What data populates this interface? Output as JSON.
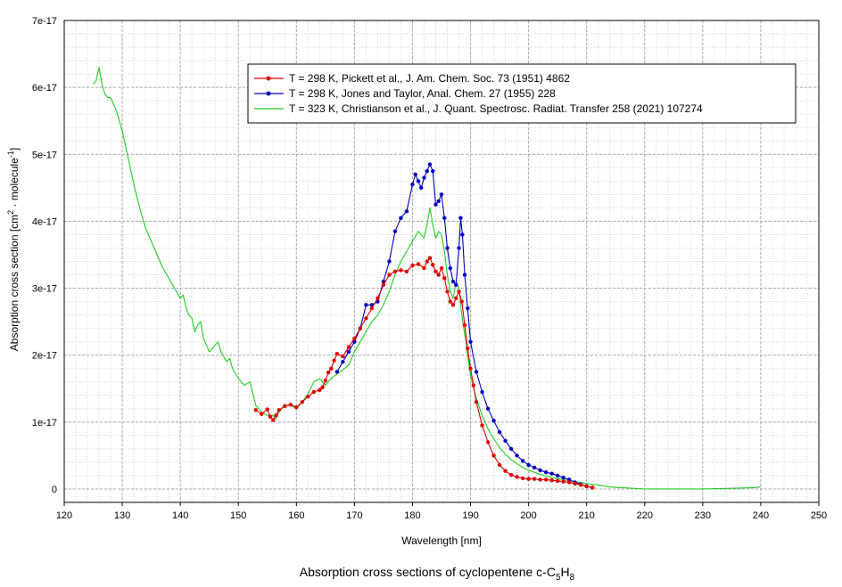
{
  "chart_data": {
    "type": "line",
    "title": "Absorption cross sections of cyclopentene c-C5H8",
    "title_parts": {
      "main": "Absorption cross sections of cyclopentene c-C",
      "sub1": "5",
      "mid": "H",
      "sub2": "8"
    },
    "xlabel": "Wavelength [nm]",
    "ylabel_parts": {
      "a": "Absorption cross section [cm",
      "sup1": "2",
      "b": " · molecule",
      "sup2": "-1",
      "c": "]"
    },
    "xlim": [
      120,
      250
    ],
    "ylim": [
      -2e-18,
      7e-17
    ],
    "xticks": [
      120,
      130,
      140,
      150,
      160,
      170,
      180,
      190,
      200,
      210,
      220,
      230,
      240,
      250
    ],
    "xtick_labels": [
      "120",
      "130",
      "140",
      "150",
      "160",
      "170",
      "180",
      "190",
      "200",
      "210",
      "220",
      "230",
      "240",
      "250"
    ],
    "yticks": [
      0,
      1e-17,
      2e-17,
      3e-17,
      4e-17,
      5e-17,
      6e-17,
      7e-17
    ],
    "ytick_labels": [
      "0",
      "1e-17",
      "2e-17",
      "3e-17",
      "4e-17",
      "5e-17",
      "6e-17",
      "7e-17"
    ],
    "grid": true,
    "legend_position": "top-right",
    "series": [
      {
        "name": "T = 298 K, Pickett et al., J. Am. Chem. Soc. 73 (1951) 4862",
        "color": "#e00000",
        "markers": true,
        "x": [
          153.0,
          154.0,
          155.0,
          155.5,
          156.0,
          156.5,
          157.0,
          158.0,
          159.0,
          160.0,
          161.0,
          162.0,
          163.0,
          164.0,
          164.5,
          165.0,
          165.5,
          166.0,
          166.5,
          167.0,
          168.0,
          169.0,
          170.0,
          171.0,
          172.0,
          173.0,
          174.0,
          175.0,
          176.0,
          177.0,
          178.0,
          179.0,
          180.0,
          181.0,
          182.0,
          182.5,
          183.0,
          183.5,
          184.0,
          184.5,
          185.0,
          185.5,
          186.0,
          186.5,
          187.0,
          187.5,
          188.0,
          188.5,
          189.0,
          189.5,
          190.0,
          190.5,
          191.0,
          192.0,
          193.0,
          194.0,
          195.0,
          196.0,
          197.0,
          198.0,
          199.0,
          200.0,
          201.0,
          202.0,
          203.0,
          204.0,
          205.0,
          206.0,
          207.0,
          208.0,
          209.0,
          210.0,
          211.0
        ],
        "y": [
          1.18e-17,
          1.12e-17,
          1.19e-17,
          1.08e-17,
          1.03e-17,
          1.1e-17,
          1.18e-17,
          1.24e-17,
          1.26e-17,
          1.22e-17,
          1.3e-17,
          1.38e-17,
          1.45e-17,
          1.48e-17,
          1.52e-17,
          1.62e-17,
          1.74e-17,
          1.8e-17,
          1.92e-17,
          2.02e-17,
          1.98e-17,
          2.12e-17,
          2.25e-17,
          2.4e-17,
          2.55e-17,
          2.7e-17,
          2.85e-17,
          3.05e-17,
          3.2e-17,
          3.25e-17,
          3.27e-17,
          3.25e-17,
          3.34e-17,
          3.36e-17,
          3.3e-17,
          3.4e-17,
          3.45e-17,
          3.35e-17,
          3.25e-17,
          3.2e-17,
          3.3e-17,
          3.15e-17,
          2.95e-17,
          2.8e-17,
          2.75e-17,
          2.85e-17,
          2.95e-17,
          2.8e-17,
          2.45e-17,
          2.1e-17,
          1.8e-17,
          1.55e-17,
          1.3e-17,
          9.5e-18,
          7e-18,
          5e-18,
          3.6e-18,
          2.7e-18,
          2.1e-18,
          1.8e-18,
          1.6e-18,
          1.5e-18,
          1.5e-18,
          1.4e-18,
          1.4e-18,
          1.3e-18,
          1.2e-18,
          1.1e-18,
          1e-18,
          8e-19,
          6e-19,
          4e-19,
          2e-19
        ]
      },
      {
        "name": "T = 298 K, Jones and Taylor, Anal. Chem. 27 (1955) 228",
        "color": "#0000c0",
        "markers": true,
        "x": [
          167.0,
          168.0,
          169.0,
          170.0,
          171.0,
          172.0,
          173.0,
          174.0,
          175.0,
          176.0,
          177.0,
          178.0,
          179.0,
          180.0,
          180.5,
          181.0,
          181.5,
          182.0,
          182.5,
          183.0,
          183.5,
          184.0,
          184.5,
          185.0,
          185.5,
          186.0,
          186.5,
          187.0,
          187.5,
          188.0,
          188.3,
          188.6,
          189.0,
          189.5,
          190.0,
          191.0,
          192.0,
          193.0,
          194.0,
          195.0,
          196.0,
          197.0,
          198.0,
          199.0,
          200.0,
          201.0,
          202.0,
          203.0,
          204.0,
          205.0,
          206.0,
          207.0,
          208.0,
          209.0,
          210.0,
          211.0
        ],
        "y": [
          1.75e-17,
          1.9e-17,
          2.05e-17,
          2.2e-17,
          2.4e-17,
          2.75e-17,
          2.75e-17,
          2.8e-17,
          3.1e-17,
          3.4e-17,
          3.85e-17,
          4.05e-17,
          4.15e-17,
          4.55e-17,
          4.7e-17,
          4.6e-17,
          4.5e-17,
          4.65e-17,
          4.75e-17,
          4.85e-17,
          4.75e-17,
          4.25e-17,
          4.3e-17,
          4.4e-17,
          4.05e-17,
          3.6e-17,
          3.3e-17,
          3.1e-17,
          3.05e-17,
          3.6e-17,
          4.05e-17,
          3.8e-17,
          3.2e-17,
          2.7e-17,
          2.2e-17,
          1.75e-17,
          1.45e-17,
          1.2e-17,
          1.02e-17,
          8.5e-18,
          7.2e-18,
          6e-18,
          5e-18,
          4.2e-18,
          3.6e-18,
          3.2e-18,
          2.8e-18,
          2.5e-18,
          2.3e-18,
          2e-18,
          1.7e-18,
          1.4e-18,
          1e-18,
          7e-19,
          4e-19,
          2e-19
        ]
      },
      {
        "name": "T = 323 K, Christianson et al., J. Quant. Spectrosc. Radiat. Transfer 258 (2021) 107274",
        "color": "#22cc22",
        "markers": false,
        "x": [
          125.0,
          125.5,
          126.0,
          126.5,
          127.0,
          127.5,
          128.0,
          129.0,
          130.0,
          131.0,
          132.0,
          133.0,
          134.0,
          135.0,
          136.0,
          137.0,
          138.0,
          139.0,
          140.0,
          140.5,
          141.0,
          141.5,
          142.0,
          142.5,
          143.0,
          143.5,
          144.0,
          145.0,
          146.0,
          146.5,
          147.0,
          148.0,
          148.5,
          149.0,
          150.0,
          151.0,
          152.0,
          153.0,
          154.0,
          155.0,
          156.0,
          156.5,
          157.0,
          158.0,
          159.0,
          160.0,
          161.0,
          162.0,
          163.0,
          164.0,
          165.0,
          166.0,
          167.0,
          168.0,
          169.0,
          170.0,
          171.0,
          172.0,
          173.0,
          174.0,
          175.0,
          176.0,
          177.0,
          178.0,
          179.0,
          180.0,
          181.0,
          182.0,
          182.5,
          183.0,
          183.5,
          184.0,
          184.5,
          185.0,
          185.5,
          186.0,
          186.5,
          187.0,
          187.5,
          188.0,
          188.5,
          189.0,
          190.0,
          191.0,
          192.0,
          193.0,
          194.0,
          195.0,
          196.0,
          197.0,
          198.0,
          199.0,
          200.0,
          202.0,
          204.0,
          206.0,
          208.0,
          210.0,
          212.0,
          214.0,
          216.0,
          218.0,
          220.0,
          225.0,
          230.0,
          235.0,
          239.0,
          240.0
        ],
        "y": [
          6.05e-17,
          6.1e-17,
          6.3e-17,
          6.05e-17,
          5.9e-17,
          5.85e-17,
          5.85e-17,
          5.65e-17,
          5.35e-17,
          4.95e-17,
          4.55e-17,
          4.2e-17,
          3.9e-17,
          3.7e-17,
          3.5e-17,
          3.3e-17,
          3.15e-17,
          3e-17,
          2.85e-17,
          2.9e-17,
          2.7e-17,
          2.6e-17,
          2.55e-17,
          2.35e-17,
          2.45e-17,
          2.5e-17,
          2.25e-17,
          2.05e-17,
          2.15e-17,
          2.2e-17,
          2.05e-17,
          1.9e-17,
          1.95e-17,
          1.8e-17,
          1.65e-17,
          1.55e-17,
          1.6e-17,
          1.25e-17,
          1.15e-17,
          1.1e-17,
          1.1e-17,
          1.05e-17,
          1.15e-17,
          1.25e-17,
          1.25e-17,
          1.2e-17,
          1.3e-17,
          1.42e-17,
          1.6e-17,
          1.65e-17,
          1.55e-17,
          1.65e-17,
          1.72e-17,
          1.78e-17,
          1.85e-17,
          2.05e-17,
          2.2e-17,
          2.35e-17,
          2.5e-17,
          2.6e-17,
          2.75e-17,
          2.95e-17,
          3.2e-17,
          3.4e-17,
          3.55e-17,
          3.7e-17,
          3.85e-17,
          3.75e-17,
          3.95e-17,
          4.2e-17,
          3.95e-17,
          3.75e-17,
          3.85e-17,
          3.8e-17,
          3.55e-17,
          3.2e-17,
          2.95e-17,
          2.85e-17,
          3.1e-17,
          3e-17,
          2.6e-17,
          2.3e-17,
          1.7e-17,
          1.35e-17,
          1.1e-17,
          9e-18,
          7.5e-18,
          6.2e-18,
          5.2e-18,
          4.4e-18,
          3.8e-18,
          3.2e-18,
          2.8e-18,
          2.2e-18,
          1.7e-18,
          1.4e-18,
          1.1e-18,
          8e-19,
          6e-19,
          3e-19,
          2e-19,
          1e-19,
          0.0,
          0.0,
          0.0,
          1e-19,
          2e-19,
          3e-19
        ]
      }
    ]
  }
}
